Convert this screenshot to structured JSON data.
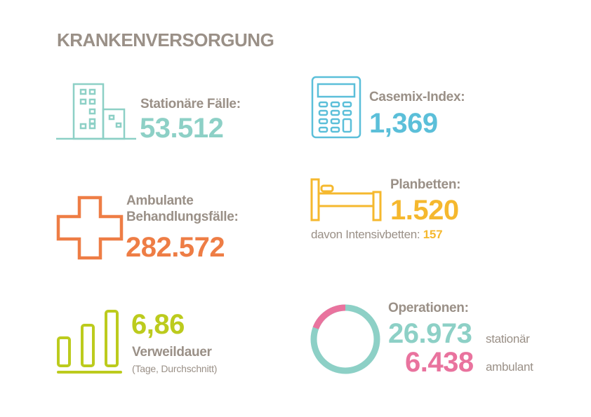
{
  "title": "KRANKENVERSORGUNG",
  "colors": {
    "teal": "#8dd0c6",
    "blue": "#5bbfd9",
    "orange": "#ee7d45",
    "amber": "#f5b82e",
    "lime": "#bccb1d",
    "pink": "#e9739e",
    "gray": "#9a9087"
  },
  "stationaer": {
    "icon": "building-icon",
    "label": "Stationäre Fälle:",
    "value": "53.512"
  },
  "casemix": {
    "icon": "calculator-icon",
    "label": "Casemix-Index:",
    "value": "1,369"
  },
  "ambulant": {
    "icon": "medical-cross-icon",
    "label_line1": "Ambulante",
    "label_line2": "Behandlungsfälle:",
    "value": "282.572"
  },
  "planbetten": {
    "icon": "bed-icon",
    "label": "Planbetten:",
    "value": "1.520",
    "sub_label": "davon Intensivbetten:",
    "sub_value": "157"
  },
  "verweildauer": {
    "icon": "bar-chart-icon",
    "value": "6,86",
    "label": "Verweildauer",
    "sub_label": "(Tage, Durchschnitt)"
  },
  "operationen": {
    "icon": "donut-chart-icon",
    "label": "Operationen:",
    "stationaer_value": "26.973",
    "stationaer_label": "stationär",
    "ambulant_value": "6.438",
    "ambulant_label": "ambulant",
    "ambulant_share": 0.193
  }
}
